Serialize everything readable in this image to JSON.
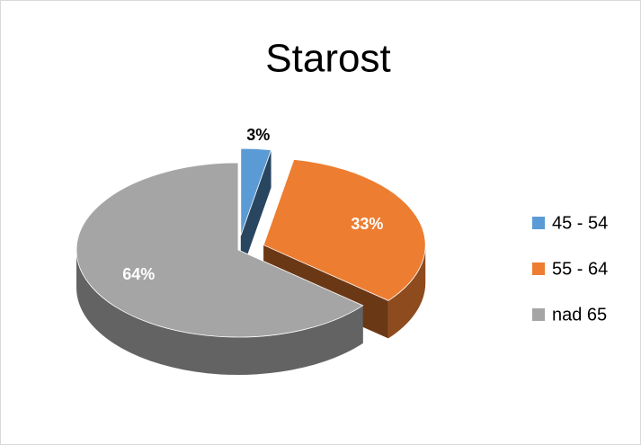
{
  "chart_data": {
    "type": "pie",
    "title": "Starost",
    "categories": [
      "45 - 54",
      "55 - 64",
      "nad 65"
    ],
    "values": [
      3,
      33,
      64
    ],
    "value_labels": [
      "3%",
      "33%",
      "64%"
    ],
    "colors": [
      "#5b9bd5",
      "#ed7d31",
      "#a5a5a5"
    ],
    "legend": "right"
  }
}
